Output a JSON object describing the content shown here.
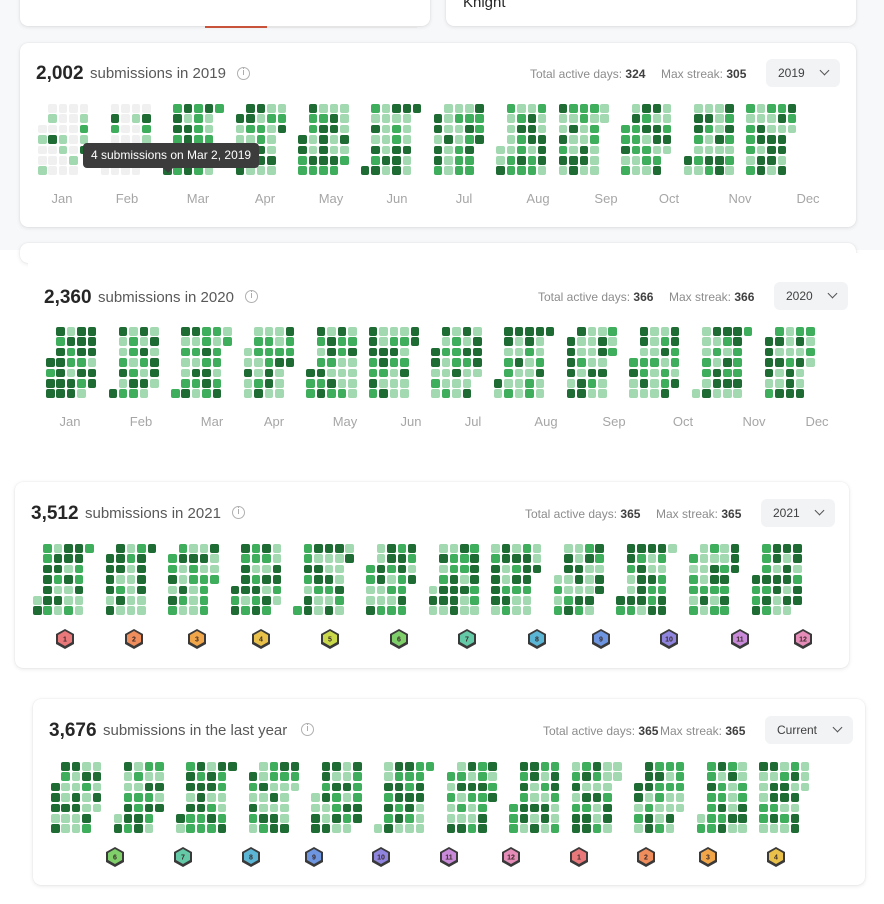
{
  "top": {
    "left_card_text": "",
    "right_card_text": "Knight"
  },
  "colors": {
    "level0": "#ebedf0",
    "level1": "#9be9a8",
    "level2": "#40c463",
    "level3": "#30a14e",
    "level4": "#216e39",
    "empty": "#f0f0f0",
    "pale": "#a3d9b1",
    "mid": "#3fae5c",
    "dark": "#1e6b34"
  },
  "sections": [
    {
      "count": "2,002",
      "label": "submissions in 2019",
      "active_days_label": "Total active days:",
      "active_days": "324",
      "max_streak_label": "Max streak:",
      "max_streak": "305",
      "select": "2019",
      "months": [
        "Jan",
        "Feb",
        "Mar",
        "Apr",
        "May",
        "Jun",
        "Jul",
        "Aug",
        "Sep",
        "Oct",
        "Nov",
        "Dec"
      ],
      "tooltip": "4 submissions on Mar 2, 2019",
      "badges": []
    },
    {
      "count": "2,360",
      "label": "submissions in 2020",
      "active_days_label": "Total active days:",
      "active_days": "366",
      "max_streak_label": "Max streak:",
      "max_streak": "366",
      "select": "2020",
      "months": [
        "Jan",
        "Feb",
        "Mar",
        "Apr",
        "May",
        "Jun",
        "Jul",
        "Aug",
        "Sep",
        "Oct",
        "Nov",
        "Dec"
      ],
      "badges": []
    },
    {
      "count": "3,512",
      "label": "submissions in 2021",
      "active_days_label": "Total active days:",
      "active_days": "365",
      "max_streak_label": "Max streak:",
      "max_streak": "365",
      "select": "2021",
      "months": [],
      "badges": [
        {
          "num": "1",
          "color": "#e8787a"
        },
        {
          "num": "2",
          "color": "#ef8d5c"
        },
        {
          "num": "3",
          "color": "#f2a64a"
        },
        {
          "num": "4",
          "color": "#e9c14a"
        },
        {
          "num": "5",
          "color": "#c9d94a"
        },
        {
          "num": "6",
          "color": "#7fcf6a"
        },
        {
          "num": "7",
          "color": "#63c9a6"
        },
        {
          "num": "8",
          "color": "#5bb5d4"
        },
        {
          "num": "9",
          "color": "#6d95e0"
        },
        {
          "num": "10",
          "color": "#8f84de"
        },
        {
          "num": "11",
          "color": "#c98ad9"
        },
        {
          "num": "12",
          "color": "#e58cb8"
        }
      ]
    },
    {
      "count": "3,676",
      "label": "submissions in the last year",
      "active_days_label": "Total active days:",
      "active_days": "365",
      "max_streak_label": "Max streak:",
      "max_streak": "365",
      "select": "Current",
      "months": [],
      "badges": [
        {
          "num": "6",
          "color": "#7fcf6a"
        },
        {
          "num": "7",
          "color": "#63c9a6"
        },
        {
          "num": "8",
          "color": "#5bb5d4"
        },
        {
          "num": "9",
          "color": "#6d95e0"
        },
        {
          "num": "10",
          "color": "#8f84de"
        },
        {
          "num": "11",
          "color": "#c98ad9"
        },
        {
          "num": "12",
          "color": "#e58cb8"
        },
        {
          "num": "1",
          "color": "#e8787a"
        },
        {
          "num": "2",
          "color": "#ef8d5c"
        },
        {
          "num": "3",
          "color": "#f2a64a"
        },
        {
          "num": "4",
          "color": "#e9c14a"
        }
      ]
    }
  ]
}
